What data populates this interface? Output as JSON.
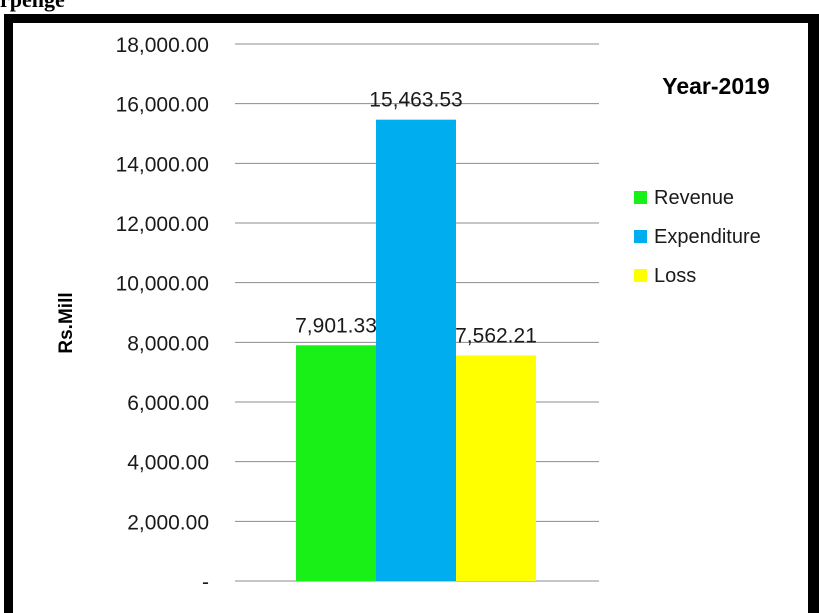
{
  "page": {
    "heading_fragment": "rpenge"
  },
  "chart_data": {
    "type": "bar",
    "title": "Year-2019",
    "xlabel": "",
    "ylabel": "Rs.Mill",
    "ylim": [
      0,
      18000
    ],
    "yticks": [
      0,
      2000,
      4000,
      6000,
      8000,
      10000,
      12000,
      14000,
      16000,
      18000
    ],
    "ytick_labels": [
      "-",
      "2,000.00",
      "4,000.00",
      "6,000.00",
      "8,000.00",
      "10,000.00",
      "12,000.00",
      "14,000.00",
      "16,000.00",
      "18,000.00"
    ],
    "grid": true,
    "legend_position": "right",
    "categories": [
      ""
    ],
    "series": [
      {
        "name": "Revenue",
        "values": [
          7901.33
        ],
        "value_label": "7,901.33",
        "color": "#18f018"
      },
      {
        "name": "Expenditure",
        "values": [
          15463.53
        ],
        "value_label": "15,463.53",
        "color": "#00aeef"
      },
      {
        "name": "Loss",
        "values": [
          7562.21
        ],
        "value_label": "7,562.21",
        "color": "#ffff00"
      }
    ]
  }
}
